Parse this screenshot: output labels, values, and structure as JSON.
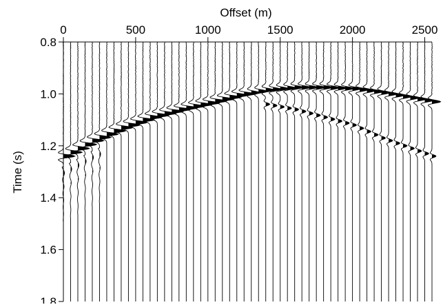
{
  "chart_data": {
    "type": "seismic-wiggle",
    "xlabel": "Offset (m)",
    "ylabel": "Time (s)",
    "x_ticks": [
      0,
      500,
      1000,
      1500,
      2000,
      2500
    ],
    "x_tick_labels": [
      "0",
      "500",
      "1000",
      "1500",
      "2000",
      "2500"
    ],
    "y_ticks": [
      0.8,
      1.0,
      1.2,
      1.4,
      1.6,
      1.8
    ],
    "y_tick_labels": [
      "0.8",
      "1.0",
      "1.2",
      "1.4",
      "1.6",
      "1.8"
    ],
    "xlim": [
      0,
      2550
    ],
    "ylim": [
      0.8,
      1.8
    ],
    "y_inverted": true,
    "x_axis_position": "top",
    "trace_offsets": [
      0,
      50,
      100,
      150,
      200,
      250,
      300,
      350,
      400,
      450,
      500,
      550,
      600,
      650,
      700,
      750,
      800,
      850,
      900,
      950,
      1000,
      1050,
      1100,
      1150,
      1200,
      1250,
      1300,
      1350,
      1400,
      1450,
      1500,
      1550,
      1600,
      1650,
      1700,
      1750,
      1800,
      1850,
      1900,
      1950,
      2000,
      2050,
      2100,
      2150,
      2200,
      2250,
      2300,
      2350,
      2400,
      2450,
      2500,
      2550
    ],
    "primary_event": {
      "offset": [
        0,
        200,
        400,
        600,
        800,
        1000,
        1200,
        1400,
        1600,
        1800,
        2000,
        2200,
        2400,
        2550
      ],
      "time": [
        1.24,
        1.18,
        1.13,
        1.09,
        1.06,
        1.035,
        1.005,
        0.985,
        0.975,
        0.975,
        0.98,
        0.995,
        1.015,
        1.03
      ]
    },
    "secondary_event": {
      "offset": [
        1400,
        1600,
        1800,
        2000,
        2200,
        2400,
        2550
      ],
      "time": [
        1.04,
        1.06,
        1.09,
        1.12,
        1.17,
        1.21,
        1.24
      ]
    }
  }
}
